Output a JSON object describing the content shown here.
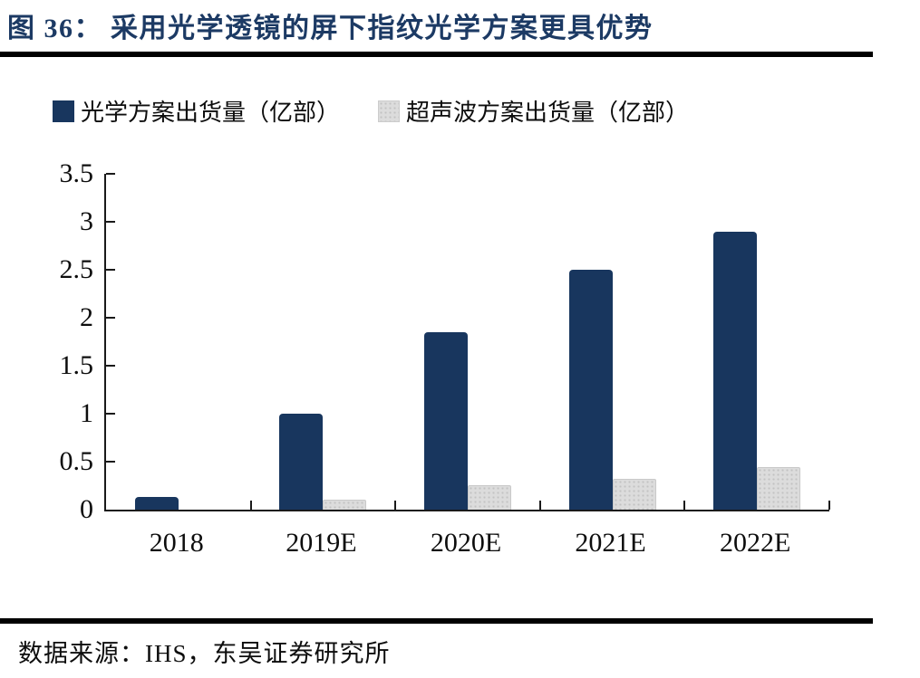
{
  "title": "图 36：  采用光学透镜的屏下指纹光学方案更具优势",
  "source": "数据来源：IHS，东吴证券研究所",
  "colors": {
    "title_navy": "#1c3a64",
    "bar_navy": "#18365e",
    "bar_gray": "#dcdcdc",
    "bar_gray_dot": "#c2c2c2",
    "axis": "#1a1a1a",
    "rule": "#000000"
  },
  "legend": [
    {
      "label": "光学方案出货量（亿部）",
      "pattern": "solid",
      "color": "#18365e"
    },
    {
      "label": "超声波方案出货量（亿部）",
      "pattern": "dots",
      "color": "#dcdcdc"
    }
  ],
  "chart_data": {
    "type": "bar",
    "categories": [
      "2018",
      "2019E",
      "2020E",
      "2021E",
      "2022E"
    ],
    "series": [
      {
        "name": "光学方案出货量（亿部）",
        "pattern": "solid",
        "color": "#18365e",
        "values": [
          0.13,
          1.0,
          1.85,
          2.5,
          2.9
        ]
      },
      {
        "name": "超声波方案出货量（亿部）",
        "pattern": "dots",
        "color": "#dcdcdc",
        "values": [
          0,
          0.1,
          0.25,
          0.32,
          0.44
        ]
      }
    ],
    "title": "采用光学透镜的屏下指纹光学方案更具优势",
    "xlabel": "",
    "ylabel": "",
    "ylim": [
      0,
      3.5
    ],
    "ytick_step": 0.5,
    "yticks": [
      "3.5",
      "3",
      "2.5",
      "2",
      "1.5",
      "1",
      "0.5",
      "0"
    ],
    "grid": false,
    "legend_position": "top"
  }
}
